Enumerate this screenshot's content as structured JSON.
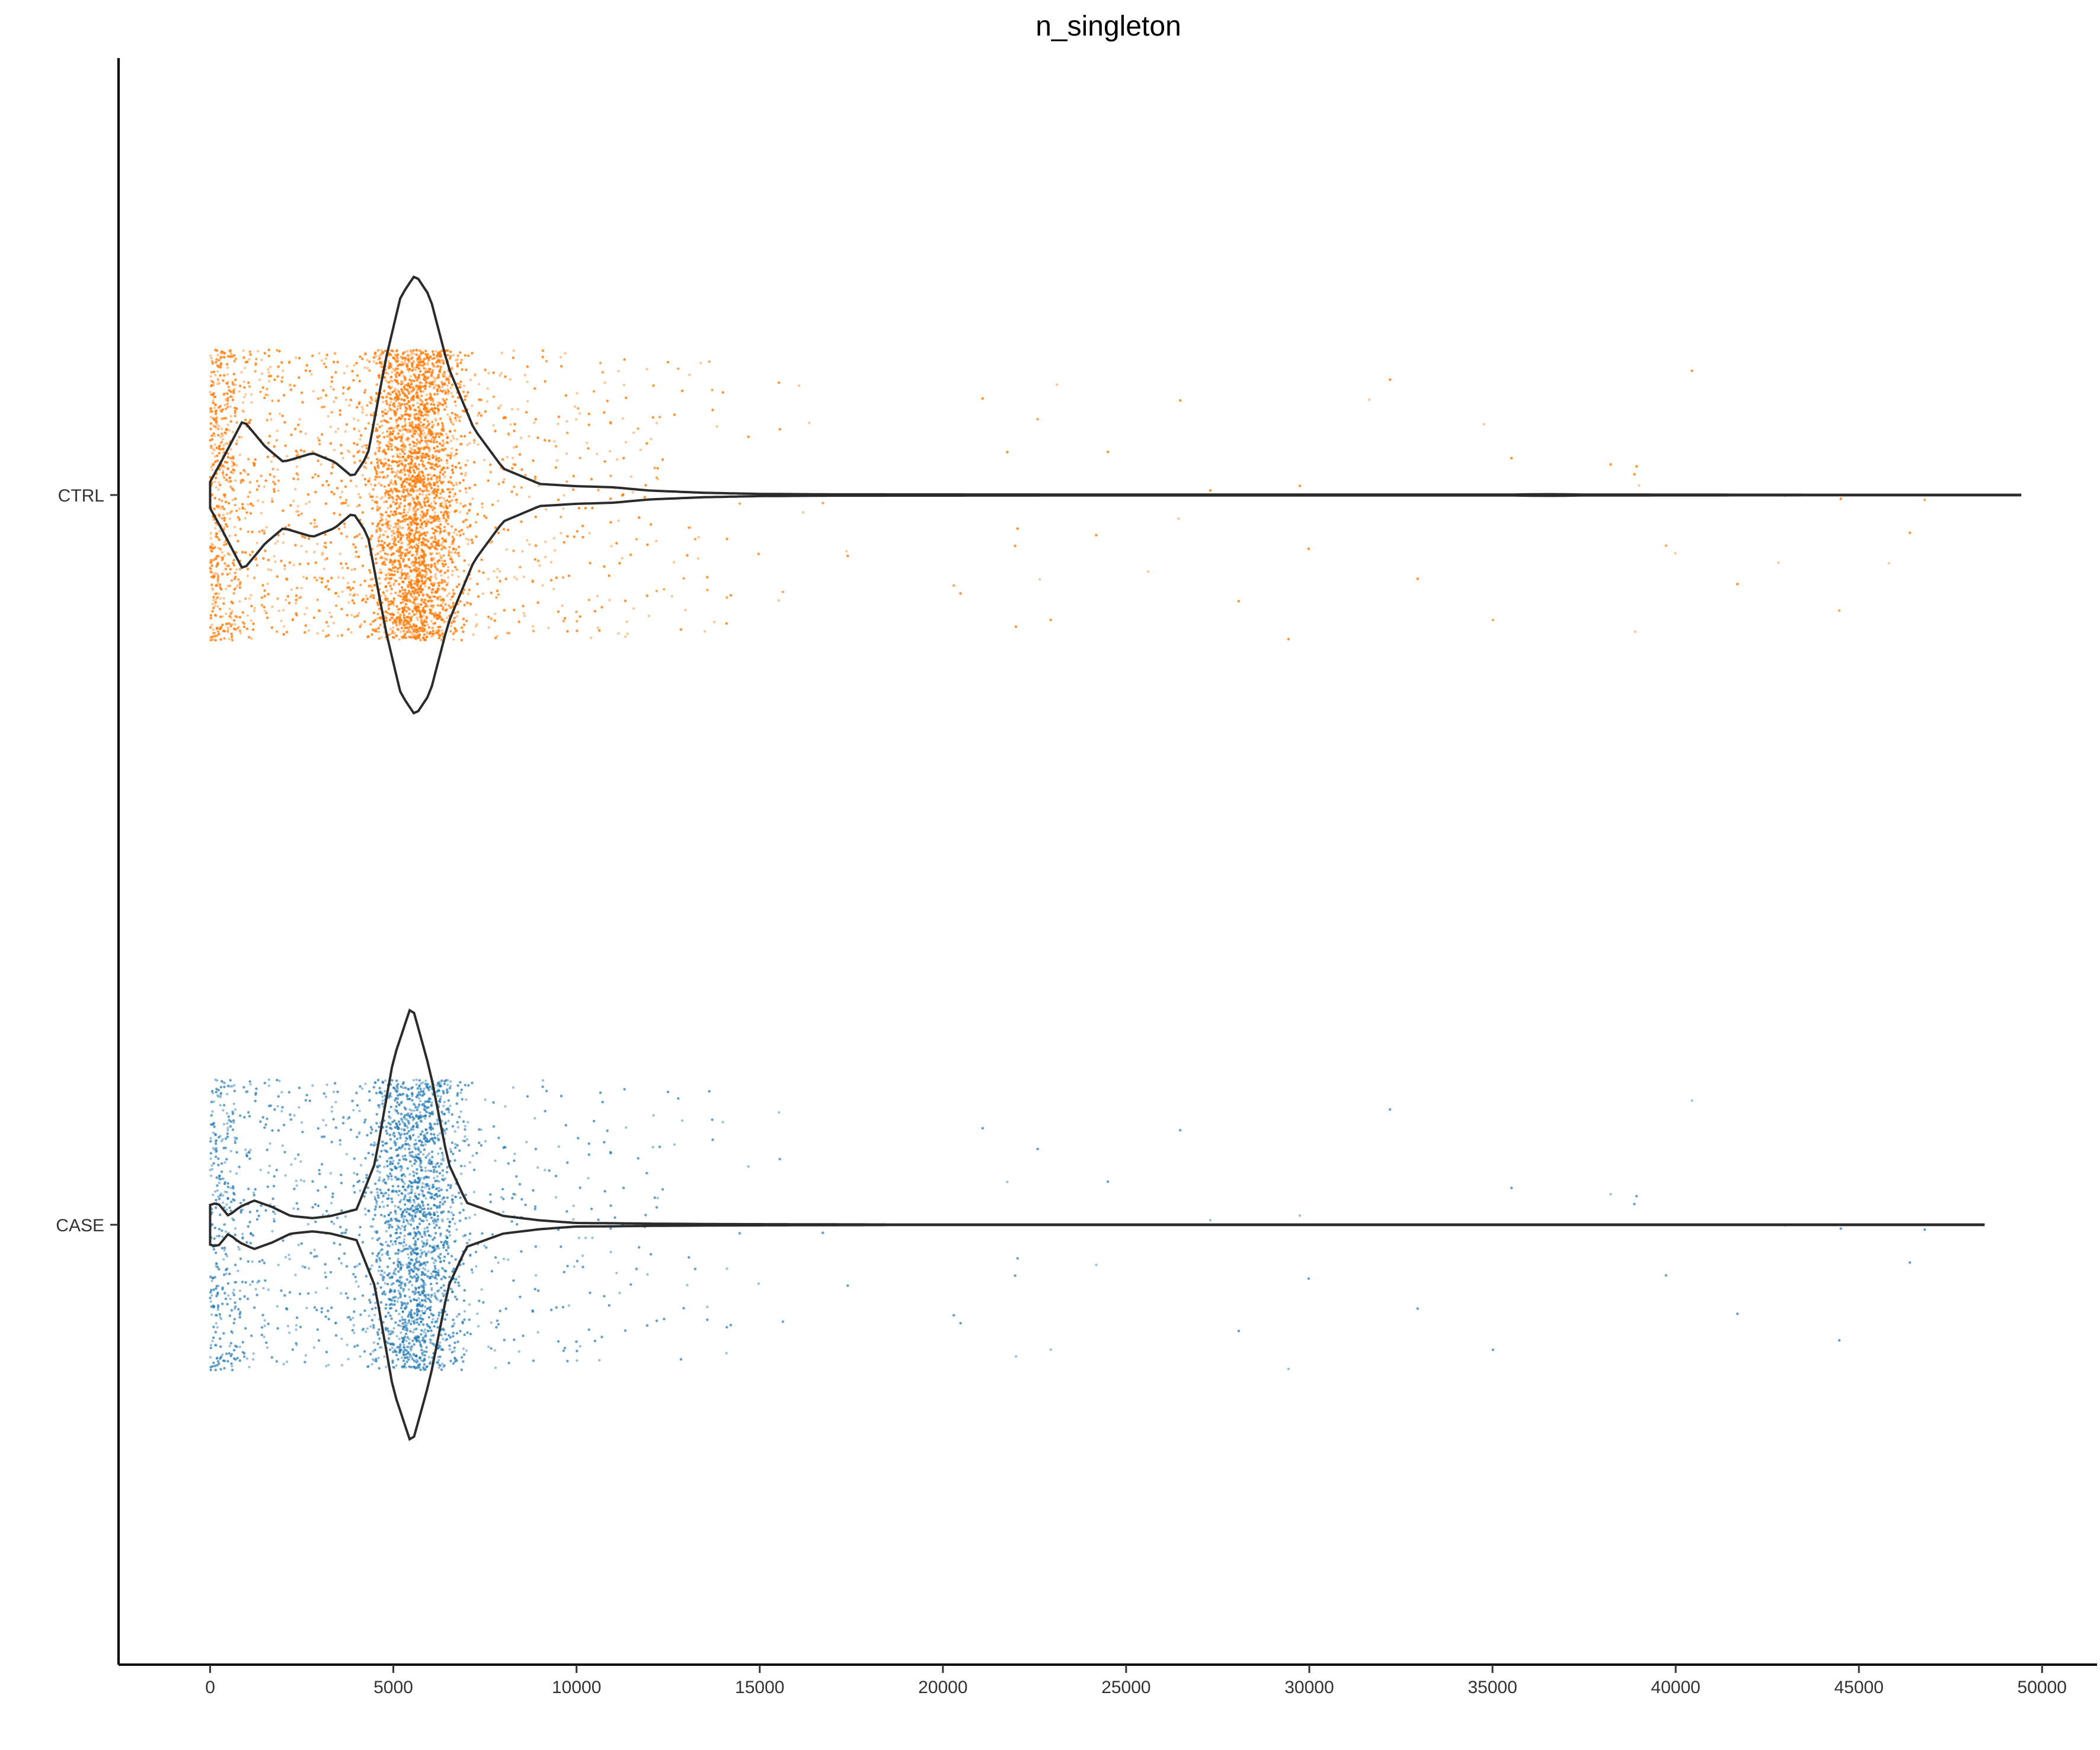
{
  "chart_data": {
    "type": "violin",
    "title": "n_singleton",
    "xlabel": "",
    "ylabel": "",
    "xlim": [
      -2500,
      51500
    ],
    "x_ticks": [
      0,
      5000,
      10000,
      15000,
      20000,
      25000,
      30000,
      35000,
      40000,
      45000,
      50000
    ],
    "grid": false,
    "legend": "none",
    "orientation": "horizontal",
    "categories": [
      "CTRL",
      "CASE"
    ],
    "series": [
      {
        "category": "CTRL",
        "color": "#ff7f0e",
        "jitter_points_approx": 9000,
        "range": [
          0,
          49400
        ],
        "density_profile": [
          [
            0,
            0.06
          ],
          [
            300,
            0.15
          ],
          [
            900,
            0.34
          ],
          [
            1500,
            0.22
          ],
          [
            2000,
            0.15
          ],
          [
            2800,
            0.19
          ],
          [
            3400,
            0.15
          ],
          [
            3900,
            0.08
          ],
          [
            4300,
            0.18
          ],
          [
            4800,
            0.62
          ],
          [
            5200,
            0.9
          ],
          [
            5600,
            1.0
          ],
          [
            6000,
            0.9
          ],
          [
            6500,
            0.58
          ],
          [
            7200,
            0.3
          ],
          [
            8000,
            0.12
          ],
          [
            9000,
            0.05
          ],
          [
            10000,
            0.04
          ],
          [
            11000,
            0.035
          ],
          [
            12000,
            0.02
          ],
          [
            13500,
            0.01
          ],
          [
            15000,
            0.005
          ],
          [
            17000,
            0.003
          ],
          [
            25000,
            0.002
          ],
          [
            35500,
            0.002
          ],
          [
            36500,
            0.004
          ],
          [
            37500,
            0.002
          ],
          [
            45000,
            0.001
          ],
          [
            49400,
            0.001
          ]
        ]
      },
      {
        "category": "CASE",
        "color": "#1f77b4",
        "jitter_points_approx": 4500,
        "range": [
          0,
          48400
        ],
        "density_profile": [
          [
            0,
            0.09
          ],
          [
            200,
            0.1
          ],
          [
            500,
            0.04
          ],
          [
            800,
            0.08
          ],
          [
            1200,
            0.11
          ],
          [
            1700,
            0.08
          ],
          [
            2200,
            0.04
          ],
          [
            2800,
            0.03
          ],
          [
            3300,
            0.04
          ],
          [
            4000,
            0.07
          ],
          [
            4500,
            0.28
          ],
          [
            5000,
            0.75
          ],
          [
            5500,
            1.0
          ],
          [
            6000,
            0.7
          ],
          [
            6500,
            0.28
          ],
          [
            7000,
            0.1
          ],
          [
            8000,
            0.04
          ],
          [
            9000,
            0.02
          ],
          [
            10000,
            0.008
          ],
          [
            11000,
            0.007
          ],
          [
            12000,
            0.005
          ],
          [
            14000,
            0.003
          ],
          [
            19000,
            0.001
          ],
          [
            48400,
            0.001
          ]
        ]
      }
    ]
  }
}
